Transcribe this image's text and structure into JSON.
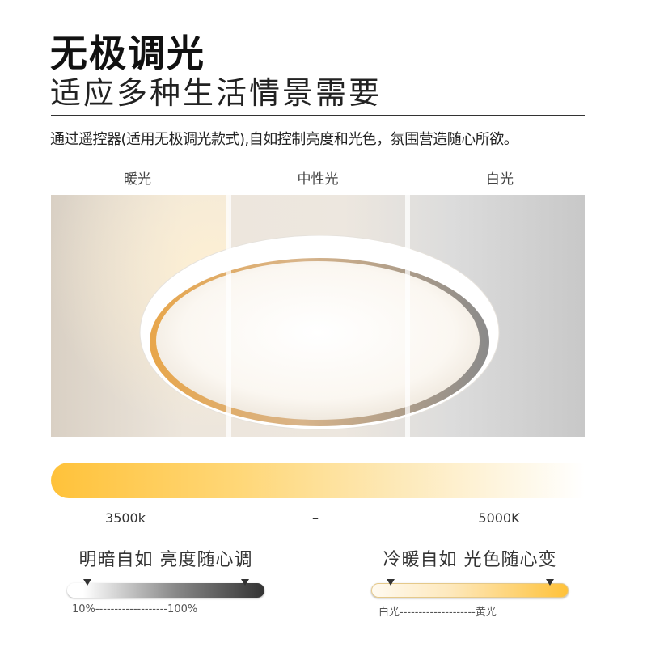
{
  "header": {
    "title": "无极调光",
    "subtitle": "适应多种生活情景需要",
    "description": "通过遥控器(适用无极调光款式),自如控制亮度和光色，氛围营造随心所欲。"
  },
  "modes": [
    "暖光",
    "中性光",
    "白光"
  ],
  "color_temperature": {
    "min_label": "3500k",
    "separator": "–",
    "max_label": "5000K",
    "colors": {
      "warm": "#ffc23a",
      "cool": "#ffffff"
    }
  },
  "brightness": {
    "caption": "明暗自如 亮度随心调",
    "min_label": "10%",
    "dashes": "-------------------",
    "max_label": "100%"
  },
  "color_mix": {
    "caption": "冷暖自如 光色随心变",
    "min_label": "白光",
    "dashes": "--------------------",
    "max_label": "黄光"
  }
}
